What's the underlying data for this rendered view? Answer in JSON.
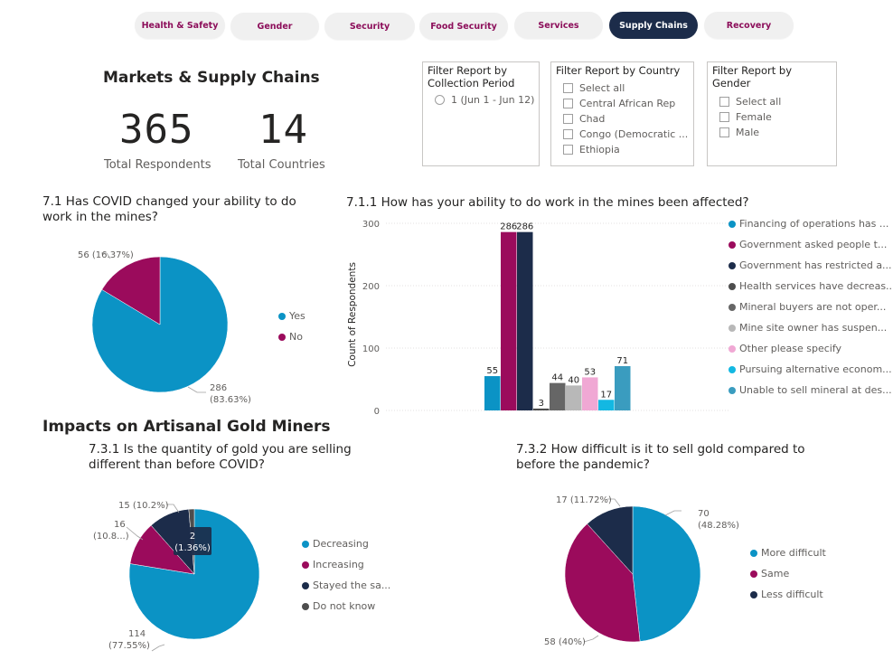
{
  "tabs": [
    {
      "label": "Health & Safety",
      "active": false
    },
    {
      "label": "Gender",
      "active": false
    },
    {
      "label": "Security",
      "active": false
    },
    {
      "label": "Food Security",
      "active": false
    },
    {
      "label": "Services",
      "active": false
    },
    {
      "label": "Supply Chains",
      "active": true
    },
    {
      "label": "Recovery",
      "active": false
    }
  ],
  "section1": {
    "title": "Markets & Supply Chains",
    "respondents_value": "365",
    "respondents_label": "Total Respondents",
    "countries_value": "14",
    "countries_label": "Total Countries"
  },
  "slicers": {
    "period": {
      "title": "Filter Report by Collection Period",
      "items": [
        "1 (Jun 1 - Jun 12)"
      ]
    },
    "country": {
      "title": "Filter Report by Country",
      "items": [
        "Select all",
        "Central African Rep",
        "Chad",
        "Congo (Democratic ...",
        "Ethiopia"
      ]
    },
    "gender": {
      "title": "Filter Report by Gender",
      "items": [
        "Select all",
        "Female",
        "Male"
      ]
    }
  },
  "section2": {
    "title": "Impacts on Artisanal Gold Miners"
  },
  "charts": {
    "q71": {
      "title": "7.1 Has COVID changed your ability to do work in the mines?",
      "label_yes_value": "286",
      "label_yes_pct": "(83.63%)",
      "label_no": "56 (16.37%)"
    },
    "q711": {
      "title": "7.1.1 How has your ability to do work in the mines been affected?"
    },
    "q731": {
      "title": "7.3.1 Is the quantity of gold you are selling different than before COVID?",
      "label_dec_value": "114",
      "label_dec_pct": "(77.55%)",
      "label_inc_value": "16",
      "label_inc_pct": "(10.8...)",
      "label_stay": "15 (10.2%)",
      "tooltip_value": "2",
      "tooltip_pct": "(1.36%)"
    },
    "q732": {
      "title": "7.3.2 How difficult is it to sell gold compared to before the pandemic?",
      "label_more_value": "70",
      "label_more_pct": "(48.28%)",
      "label_same": "58 (40%)",
      "label_less": "17 (11.72%)"
    }
  },
  "chart_data": [
    {
      "type": "pie",
      "title": "7.1 Has COVID changed your ability to do work in the mines?",
      "categories": [
        "Yes",
        "No"
      ],
      "values": [
        286,
        56
      ],
      "colors": [
        "#0b93c5",
        "#9b0b5c"
      ],
      "legend": "right"
    },
    {
      "type": "bar",
      "title": "7.1.1 How has your ability to do work in the mines been affected?",
      "ylabel": "Count of Respondents",
      "ylim": [
        0,
        300
      ],
      "yticks": [
        0,
        100,
        200,
        300
      ],
      "legend": "right",
      "series": [
        {
          "name": "Financing of operations has ...",
          "value": 55,
          "color": "#0b93c5"
        },
        {
          "name": "Government asked people t...",
          "value": 286,
          "color": "#9b0b5c"
        },
        {
          "name": "Government has restricted a...",
          "value": 286,
          "color": "#1c2c4a"
        },
        {
          "name": "Health services have decreas...",
          "value": 3,
          "color": "#4d4d4d"
        },
        {
          "name": "Mineral buyers are not oper...",
          "value": 44,
          "color": "#666666"
        },
        {
          "name": "Mine site owner has suspen...",
          "value": 40,
          "color": "#b8b8b8"
        },
        {
          "name": "Other please specify",
          "value": 53,
          "color": "#f0a8d4"
        },
        {
          "name": "Pursuing alternative econom...",
          "value": 17,
          "color": "#13b8e2"
        },
        {
          "name": "Unable to sell mineral at des...",
          "value": 71,
          "color": "#3a9cbf"
        }
      ]
    },
    {
      "type": "pie",
      "title": "7.3.1 Is the quantity of gold you are selling different than before COVID?",
      "categories": [
        "Decreasing",
        "Increasing",
        "Stayed the sa...",
        "Do not know"
      ],
      "values": [
        114,
        16,
        15,
        2
      ],
      "colors": [
        "#0b93c5",
        "#9b0b5c",
        "#1c2c4a",
        "#4d4d4d"
      ],
      "legend": "right"
    },
    {
      "type": "pie",
      "title": "7.3.2 How difficult is it to sell gold compared to before the pandemic?",
      "categories": [
        "More difficult",
        "Same",
        "Less difficult"
      ],
      "values": [
        70,
        58,
        17
      ],
      "colors": [
        "#0b93c5",
        "#9b0b5c",
        "#1c2c4a"
      ],
      "legend": "right"
    }
  ]
}
